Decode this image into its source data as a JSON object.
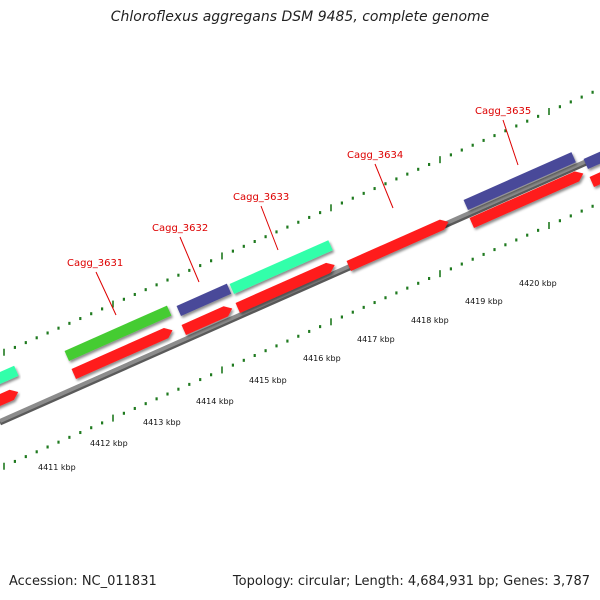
{
  "title": "Chloroflexus aggregans DSM 9485, complete genome",
  "footer": {
    "accession": "Accession: NC_011831",
    "stats": "Topology: circular; Length: 4,684,931 bp; Genes: 3,787"
  },
  "colors": {
    "background": "#ffffff",
    "gene_label": "#dd0000",
    "tick": "#1f7a1f",
    "backbone": "#8c8c8c",
    "cds": "#ff1a1a",
    "trna_cyan": "#33ffaa",
    "feature_green": "#44cc33",
    "feature_purple": "#4a4a99"
  },
  "gene_labels": [
    "Cagg_3631",
    "Cagg_3632",
    "Cagg_3633",
    "Cagg_3634",
    "Cagg_3635"
  ],
  "kbp_labels": [
    "4411 kbp",
    "4412 kbp",
    "4413 kbp",
    "4414 kbp",
    "4415 kbp",
    "4416 kbp",
    "4417 kbp",
    "4418 kbp",
    "4419 kbp",
    "4420 kbp"
  ]
}
